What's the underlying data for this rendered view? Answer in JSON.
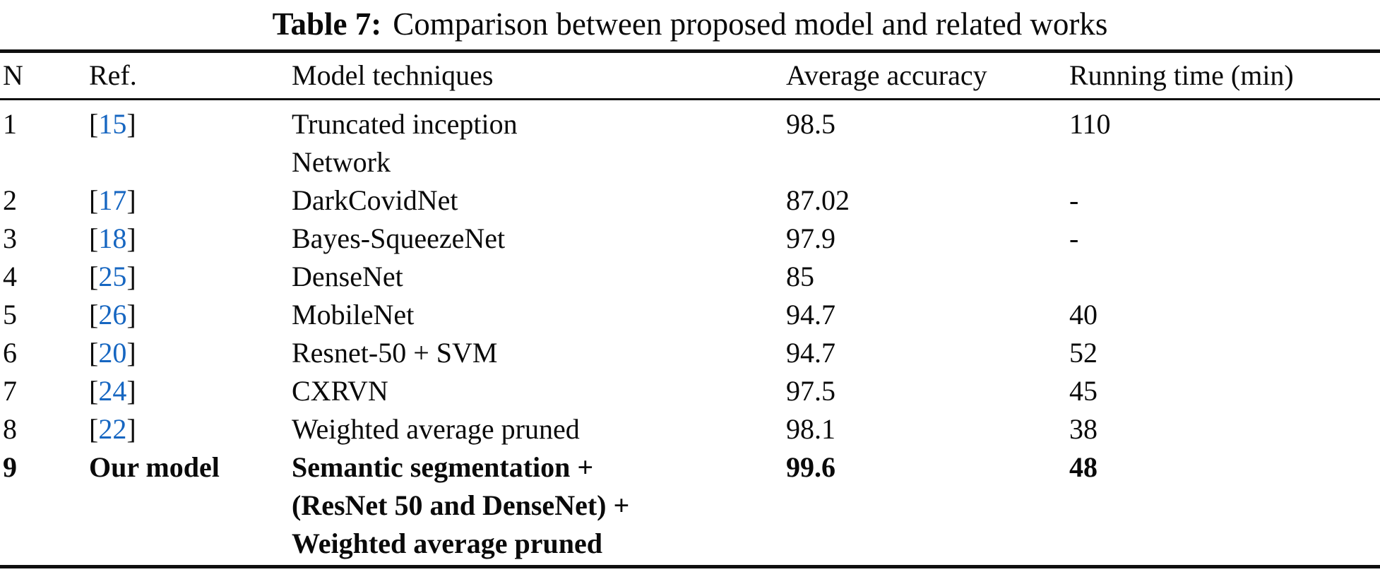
{
  "caption": {
    "label": "Table 7:",
    "text": "Comparison between proposed model and related works"
  },
  "columns": [
    "N",
    "Ref.",
    "Model techniques",
    "Average accuracy",
    "Running time (min)"
  ],
  "rows": [
    {
      "n": "1",
      "ref": {
        "bracket_open": "[",
        "num": "15",
        "bracket_close": "]"
      },
      "techniques": [
        "Truncated inception",
        "Network"
      ],
      "accuracy": "98.5",
      "time": "110",
      "bold": false
    },
    {
      "n": "2",
      "ref": {
        "bracket_open": "[",
        "num": "17",
        "bracket_close": "]"
      },
      "techniques": [
        "DarkCovidNet"
      ],
      "accuracy": "87.02",
      "time": "-",
      "bold": false
    },
    {
      "n": "3",
      "ref": {
        "bracket_open": "[",
        "num": "18",
        "bracket_close": "]"
      },
      "techniques": [
        "Bayes-SqueezeNet"
      ],
      "accuracy": "97.9",
      "time": "-",
      "bold": false
    },
    {
      "n": "4",
      "ref": {
        "bracket_open": "[",
        "num": "25",
        "bracket_close": "]"
      },
      "techniques": [
        "DenseNet"
      ],
      "accuracy": "85",
      "time": "",
      "bold": false
    },
    {
      "n": "5",
      "ref": {
        "bracket_open": "[",
        "num": "26",
        "bracket_close": "]"
      },
      "techniques": [
        "MobileNet"
      ],
      "accuracy": "94.7",
      "time": "40",
      "bold": false
    },
    {
      "n": "6",
      "ref": {
        "bracket_open": "[",
        "num": "20",
        "bracket_close": "]"
      },
      "techniques": [
        "Resnet-50 + SVM"
      ],
      "accuracy": "94.7",
      "time": "52",
      "bold": false
    },
    {
      "n": "7",
      "ref": {
        "bracket_open": "[",
        "num": "24",
        "bracket_close": "]"
      },
      "techniques": [
        "CXRVN"
      ],
      "accuracy": "97.5",
      "time": "45",
      "bold": false
    },
    {
      "n": "8",
      "ref": {
        "bracket_open": "[",
        "num": "22",
        "bracket_close": "]"
      },
      "techniques": [
        "Weighted average pruned"
      ],
      "accuracy": "98.1",
      "time": "38",
      "bold": false
    },
    {
      "n": "9",
      "ref": {
        "text": "Our model"
      },
      "techniques": [
        "Semantic segmentation +",
        "(ResNet 50 and DenseNet) +",
        "Weighted average pruned"
      ],
      "accuracy": "99.6",
      "time": "48",
      "bold": true
    }
  ],
  "colors": {
    "citation_blue": "#1666c1",
    "text_black": "#0a0a0a",
    "rule_black": "#0f0f0f"
  }
}
